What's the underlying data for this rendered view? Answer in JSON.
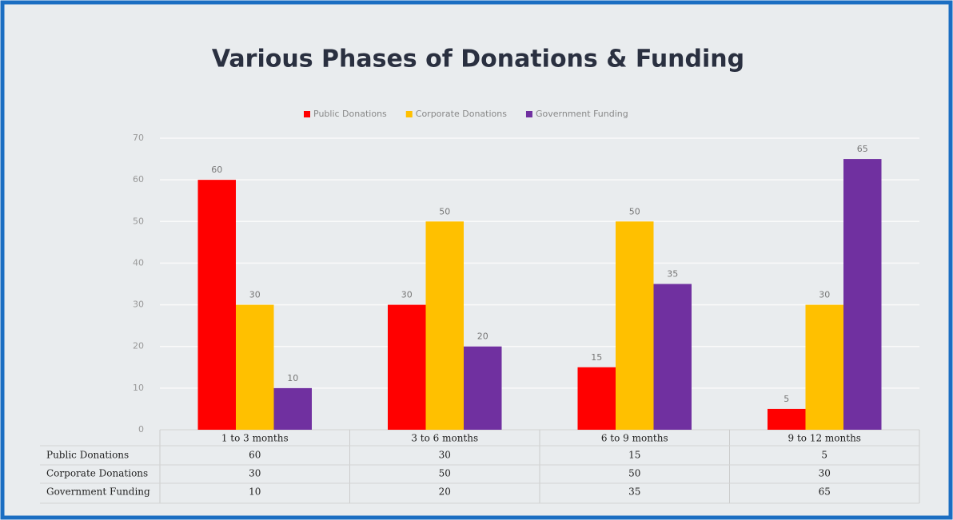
{
  "chart_data": {
    "type": "bar",
    "title": "Various Phases of Donations & Funding",
    "categories": [
      "1 to 3 months",
      "3 to 6 months",
      "6 to 9 months",
      "9 to 12 months"
    ],
    "series": [
      {
        "name": "Public Donations",
        "color": "#ff0000",
        "values": [
          60,
          30,
          15,
          5
        ]
      },
      {
        "name": "Corporate Donations",
        "color": "#ffc000",
        "values": [
          30,
          50,
          50,
          30
        ]
      },
      {
        "name": "Government Funding",
        "color": "#7030a0",
        "values": [
          10,
          20,
          35,
          65
        ]
      }
    ],
    "ylim": [
      0,
      70
    ],
    "yticks": [
      0,
      10,
      20,
      30,
      40,
      50,
      60,
      70
    ],
    "grid": true,
    "legend": "top",
    "data_table": true
  }
}
